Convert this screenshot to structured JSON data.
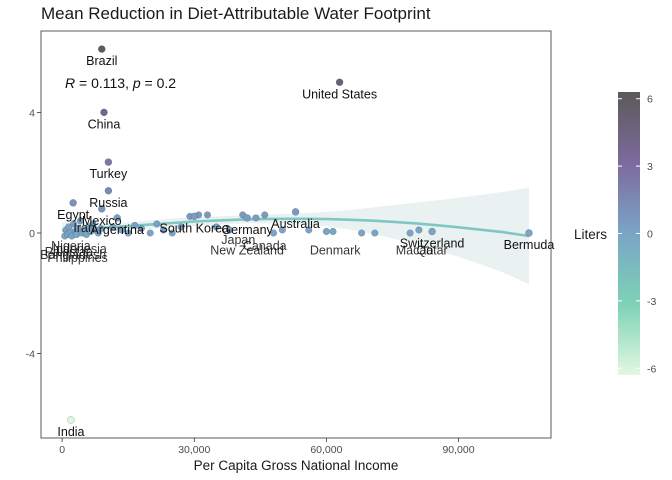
{
  "chart_data": {
    "type": "scatter",
    "title": "Mean Reduction in Diet-Attributable Water Footprint",
    "xlabel": "Per Capita Gross National Income",
    "ylabel": "",
    "xlim": [
      -4800,
      111000
    ],
    "ylim": [
      -6.8,
      6.7
    ],
    "x_ticks": [
      0,
      30000,
      60000,
      90000
    ],
    "x_tick_labels": [
      "0",
      "30,000",
      "60,000",
      "90,000"
    ],
    "y_ticks": [
      -4,
      0,
      4
    ],
    "y_tick_labels": [
      "-4",
      "0",
      "4"
    ],
    "grid": false,
    "annotation": {
      "r_symbol": "R",
      "r_text": " = 0.113, ",
      "p_symbol": "p",
      "p_text": " = 0.2"
    },
    "legend": {
      "title": "Liters",
      "position": "right",
      "min": -6.3,
      "max": 6.3,
      "ticks": [
        6,
        3,
        0,
        -3,
        -6
      ],
      "tick_labels": [
        "6",
        "3",
        "0",
        "-3",
        "-6"
      ],
      "colors": [
        "#e2f8e2",
        "#7ed2b6",
        "#7aa5c6",
        "#7d6a9d",
        "#5a5a5a"
      ]
    },
    "colors": {
      "trend_line": "#80c7c4",
      "confidence_band": "#e7f1f0",
      "point_outline": "#2e3a48"
    },
    "labeled_points": [
      {
        "label": "Brazil",
        "x": 9000,
        "y": 6.1
      },
      {
        "label": "United States",
        "x": 63000,
        "y": 5.0
      },
      {
        "label": "China",
        "x": 9500,
        "y": 4.0
      },
      {
        "label": "Turkey",
        "x": 10500,
        "y": 2.35
      },
      {
        "label": "Russia",
        "x": 10500,
        "y": 1.4
      },
      {
        "label": "Mexico",
        "x": 9000,
        "y": 0.8
      },
      {
        "label": "Egypt",
        "x": 2500,
        "y": 1.0
      },
      {
        "label": "Argentina",
        "x": 12500,
        "y": 0.5
      },
      {
        "label": "South Korea",
        "x": 30000,
        "y": 0.55
      },
      {
        "label": "Germany",
        "x": 42000,
        "y": 0.5
      },
      {
        "label": "Australia",
        "x": 53000,
        "y": 0.7
      },
      {
        "label": "Switzerland",
        "x": 84000,
        "y": 0.05
      },
      {
        "label": "Bermuda",
        "x": 106000,
        "y": 0.0
      },
      {
        "label": "India",
        "x": 2000,
        "y": -6.2
      }
    ],
    "other_points": [
      {
        "x": 600,
        "y": -0.1
      },
      {
        "x": 900,
        "y": 0.1
      },
      {
        "x": 1200,
        "y": -0.05
      },
      {
        "x": 1500,
        "y": 0.2
      },
      {
        "x": 1800,
        "y": 0.0
      },
      {
        "x": 2200,
        "y": -0.1
      },
      {
        "x": 2600,
        "y": 0.3
      },
      {
        "x": 3000,
        "y": 0.05
      },
      {
        "x": 3300,
        "y": -0.05
      },
      {
        "x": 3700,
        "y": 0.15
      },
      {
        "x": 4100,
        "y": 0.4
      },
      {
        "x": 4500,
        "y": 0.0
      },
      {
        "x": 5000,
        "y": 0.1
      },
      {
        "x": 5500,
        "y": -0.05
      },
      {
        "x": 6000,
        "y": 0.2
      },
      {
        "x": 6500,
        "y": 0.05
      },
      {
        "x": 7000,
        "y": 0.3
      },
      {
        "x": 7600,
        "y": 0.1
      },
      {
        "x": 8200,
        "y": 0.0
      },
      {
        "x": 8800,
        "y": 0.15
      },
      {
        "x": 11500,
        "y": 0.2
      },
      {
        "x": 13500,
        "y": 0.1
      },
      {
        "x": 15000,
        "y": 0.0
      },
      {
        "x": 16500,
        "y": 0.25
      },
      {
        "x": 18000,
        "y": 0.15
      },
      {
        "x": 20000,
        "y": 0.0
      },
      {
        "x": 21500,
        "y": 0.3
      },
      {
        "x": 23000,
        "y": 0.1
      },
      {
        "x": 25000,
        "y": 0.0
      },
      {
        "x": 27000,
        "y": 0.2
      },
      {
        "x": 29000,
        "y": 0.55
      },
      {
        "x": 31000,
        "y": 0.6
      },
      {
        "x": 33000,
        "y": 0.6
      },
      {
        "x": 35000,
        "y": 0.2
      },
      {
        "x": 38000,
        "y": 0.1
      },
      {
        "x": 41000,
        "y": 0.6
      },
      {
        "x": 44000,
        "y": 0.5
      },
      {
        "x": 46000,
        "y": 0.6
      },
      {
        "x": 48000,
        "y": 0.0
      },
      {
        "x": 50000,
        "y": 0.1
      },
      {
        "x": 56000,
        "y": 0.1
      },
      {
        "x": 60000,
        "y": 0.05
      },
      {
        "x": 61500,
        "y": 0.05
      },
      {
        "x": 68000,
        "y": 0.0
      },
      {
        "x": 71000,
        "y": 0.0
      },
      {
        "x": 79000,
        "y": 0.0
      },
      {
        "x": 81000,
        "y": 0.1
      }
    ],
    "overplotted_labels": [
      {
        "label": "Iran",
        "x": 5000,
        "y": 0.5
      },
      {
        "label": "Japan",
        "x": 40000,
        "y": 0.1
      },
      {
        "label": "Canada",
        "x": 46000,
        "y": -0.1
      },
      {
        "label": "New Zealand",
        "x": 42000,
        "y": -0.25
      },
      {
        "label": "Denmark",
        "x": 62000,
        "y": -0.25
      },
      {
        "label": "Macao",
        "x": 80000,
        "y": -0.25
      },
      {
        "label": "Qatar",
        "x": 84000,
        "y": -0.25
      },
      {
        "label": "Bangladesh",
        "x": 2500,
        "y": -0.4
      },
      {
        "label": "Philippines",
        "x": 3500,
        "y": -0.5
      },
      {
        "label": "Indonesia",
        "x": 4000,
        "y": -0.2
      },
      {
        "label": "Pakistan",
        "x": 1500,
        "y": -0.3
      },
      {
        "label": "Nigeria",
        "x": 2000,
        "y": -0.1
      }
    ],
    "trend": {
      "x": [
        0,
        5000,
        10000,
        15000,
        20000,
        25000,
        30000,
        35000,
        40000,
        45000,
        50000,
        55000,
        60000,
        65000,
        70000,
        75000,
        80000,
        85000,
        90000,
        95000,
        100000,
        106000
      ],
      "y": [
        0.08,
        0.13,
        0.18,
        0.23,
        0.28,
        0.33,
        0.38,
        0.41,
        0.44,
        0.46,
        0.47,
        0.47,
        0.46,
        0.44,
        0.41,
        0.37,
        0.32,
        0.26,
        0.19,
        0.11,
        0.03,
        -0.1
      ],
      "upper": [
        0.35,
        0.3,
        0.3,
        0.35,
        0.42,
        0.48,
        0.53,
        0.55,
        0.57,
        0.6,
        0.63,
        0.66,
        0.7,
        0.76,
        0.84,
        0.92,
        1.0,
        1.08,
        1.17,
        1.26,
        1.36,
        1.5
      ],
      "lower": [
        -0.19,
        -0.04,
        0.06,
        0.11,
        0.14,
        0.18,
        0.23,
        0.27,
        0.31,
        0.32,
        0.31,
        0.28,
        0.22,
        0.12,
        -0.02,
        -0.18,
        -0.36,
        -0.56,
        -0.79,
        -1.04,
        -1.3,
        -1.7
      ]
    }
  }
}
